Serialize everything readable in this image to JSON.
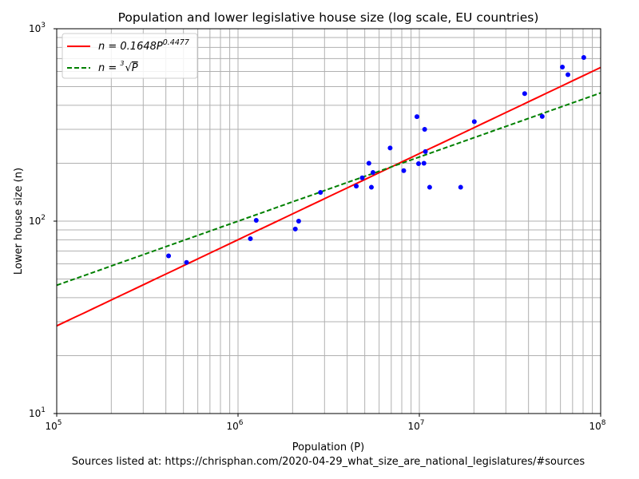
{
  "chart_data": {
    "type": "scatter",
    "title": "Population and lower legislative house size (log scale, EU countries)",
    "xlabel": "Population (P)",
    "ylabel": "Lower house size (n)",
    "xscale": "log",
    "yscale": "log",
    "xlim": [
      100000,
      100000000
    ],
    "ylim": [
      10,
      1000
    ],
    "x_ticks": [
      {
        "v": 100000,
        "base": "10",
        "exp": "5"
      },
      {
        "v": 1000000,
        "base": "10",
        "exp": "6"
      },
      {
        "v": 10000000,
        "base": "10",
        "exp": "7"
      },
      {
        "v": 100000000,
        "base": "10",
        "exp": "8"
      }
    ],
    "y_ticks": [
      {
        "v": 10,
        "base": "10",
        "exp": "1"
      },
      {
        "v": 100,
        "base": "10",
        "exp": "2"
      },
      {
        "v": 1000,
        "base": "10",
        "exp": "3"
      }
    ],
    "grid": true,
    "legend_position": "top-left",
    "points": [
      [
        414000,
        66
      ],
      [
        520000,
        61
      ],
      [
        1170000,
        81
      ],
      [
        1260000,
        101
      ],
      [
        2070000,
        91
      ],
      [
        2160000,
        100
      ],
      [
        2850000,
        141
      ],
      [
        4490000,
        152
      ],
      [
        4840000,
        168
      ],
      [
        5270000,
        200
      ],
      [
        5440000,
        150
      ],
      [
        5550000,
        179
      ],
      [
        6900000,
        240
      ],
      [
        8200000,
        183
      ],
      [
        9700000,
        349
      ],
      [
        9900000,
        199
      ],
      [
        10600000,
        200
      ],
      [
        10700000,
        300
      ],
      [
        10800000,
        230
      ],
      [
        11400000,
        150
      ],
      [
        16900000,
        150
      ],
      [
        20100000,
        329
      ],
      [
        38100000,
        460
      ],
      [
        47600000,
        350
      ],
      [
        61500000,
        632
      ],
      [
        66000000,
        577
      ],
      [
        80700000,
        709
      ]
    ],
    "point_color": "#0000ff",
    "fits": [
      {
        "label_prefix": "n = 0.1648P",
        "label_sup": "0.4477",
        "coef": 0.1648,
        "exp": 0.4477,
        "color": "#ff0000",
        "dash": false
      },
      {
        "label_prefix": "n = ",
        "label_root": "3",
        "label_rad": "P",
        "coef": 1,
        "exp": 0.333333,
        "color": "#008000",
        "dash": true
      }
    ]
  },
  "footer": "Sources listed at: https://chrisphan.com/2020-04-29_what_size_are_national_legislatures/#sources"
}
